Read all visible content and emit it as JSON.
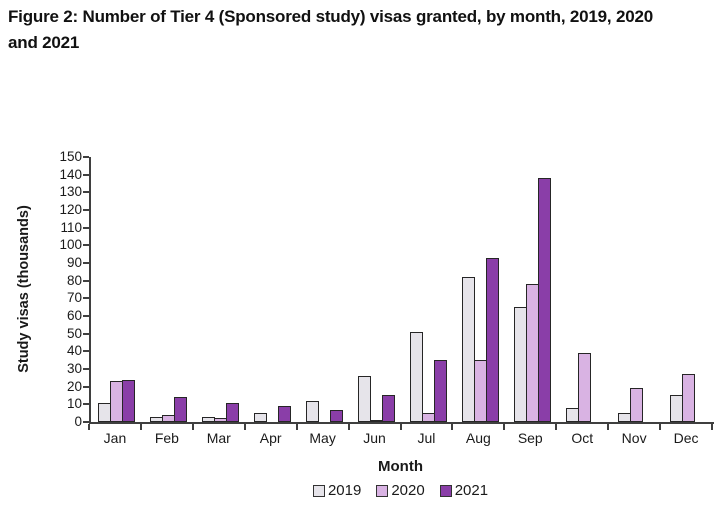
{
  "header": {
    "title_line1": "Figure 2: Number of Tier 4 (Sponsored study) visas granted, by month, 2019, 2020",
    "title_line2": "and 2021"
  },
  "chart_data": {
    "type": "bar",
    "title": "Figure 2: Number of Tier 4 (Sponsored study) visas granted, by month, 2019, 2020 and 2021",
    "xlabel": "Month",
    "ylabel": "Study visas (thousands)",
    "units": "thousands",
    "ylim": [
      0,
      150
    ],
    "ytick_step": 10,
    "grid": false,
    "legend_position": "bottom",
    "categories": [
      "Jan",
      "Feb",
      "Mar",
      "Apr",
      "May",
      "Jun",
      "Jul",
      "Aug",
      "Sep",
      "Oct",
      "Nov",
      "Dec"
    ],
    "series": [
      {
        "name": "2019",
        "color": "#e6e4ea",
        "values": [
          11,
          3,
          3,
          5,
          12,
          26,
          51,
          82,
          65,
          8,
          5,
          15
        ]
      },
      {
        "name": "2020",
        "color": "#d9b3e3",
        "values": [
          23,
          4,
          2,
          0,
          0,
          1,
          5,
          35,
          78,
          39,
          19,
          27
        ]
      },
      {
        "name": "2021",
        "color": "#8a3ea8",
        "values": [
          24,
          14,
          11,
          9,
          7,
          15,
          35,
          93,
          138,
          0,
          0,
          0
        ]
      }
    ],
    "colors": {
      "axis": "#3f3f3f",
      "text": "#1a1a1a",
      "bar_border": "#262626"
    }
  }
}
